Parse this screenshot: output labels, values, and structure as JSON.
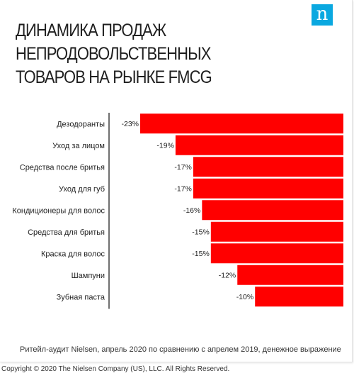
{
  "title": "ДИНАМИКА ПРОДАЖ НЕПРОДОВОЛЬСТВЕННЫХ ТОВАРОВ НА РЫНКЕ FMCG",
  "logo_letter": "n",
  "footnote": "Ритейл-аудит Nielsen, апрель 2020 по сравнению с апрелем 2019, денежное выражение",
  "copyright": "Copyright © 2020 The Nielsen Company (US), LLC. All Rights Reserved.",
  "colors": {
    "bar": "#ff0000",
    "logo": "#0aa8e0",
    "axis": "#222222"
  },
  "chart_data": {
    "type": "bar",
    "orientation": "horizontal",
    "title": "ДИНАМИКА ПРОДАЖ НЕПРОДОВОЛЬСТВЕННЫХ ТОВАРОВ НА РЫНКЕ FMCG",
    "categories": [
      "Дезодоранты",
      "Уход за лицом",
      "Средства после бритья",
      "Уход для губ",
      "Кондиционеры для волос",
      "Средства для бритья",
      "Краска для волос",
      "Шампуни",
      "Зубная паста"
    ],
    "values": [
      -23,
      -19,
      -17,
      -17,
      -16,
      -15,
      -15,
      -12,
      -10
    ],
    "value_labels": [
      "-23%",
      "-19%",
      "-17%",
      "-17%",
      "-16%",
      "-15%",
      "-15%",
      "-12%",
      "-10%"
    ],
    "unit": "%",
    "xlim": [
      -27,
      0
    ],
    "grid": false,
    "legend": "none"
  }
}
